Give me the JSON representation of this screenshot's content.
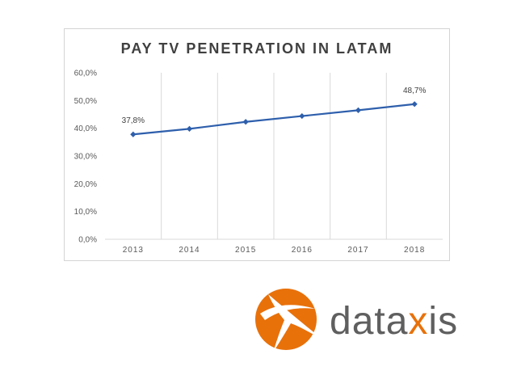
{
  "chart_data": {
    "type": "line",
    "title": "PAY TV PENETRATION IN LATAM",
    "categories": [
      "2013",
      "2014",
      "2015",
      "2016",
      "2017",
      "2018"
    ],
    "series": [
      {
        "values": [
          37.8,
          39.8,
          42.3,
          44.4,
          46.5,
          48.7
        ],
        "color": "#2e5fac"
      }
    ],
    "data_labels": [
      {
        "index": 0,
        "text": "37,8%"
      },
      {
        "index": 5,
        "text": "48,7%"
      }
    ],
    "ylim": [
      0,
      60
    ],
    "yticks": [
      "0,0%",
      "10,0%",
      "20,0%",
      "30,0%",
      "40,0%",
      "50,0%",
      "60,0%"
    ],
    "ytick_values": [
      0,
      10,
      20,
      30,
      40,
      50,
      60
    ],
    "xlabel": "",
    "ylabel": "",
    "grid": "vertical",
    "legend": "none"
  },
  "logo": {
    "text_before": "data",
    "text_x": "x",
    "text_after": "is",
    "brand_color": "#e8710a",
    "text_color": "#5f5f5f"
  }
}
